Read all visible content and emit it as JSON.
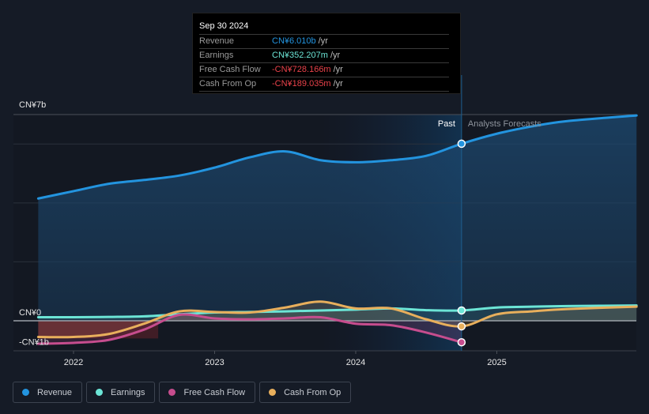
{
  "tooltip": {
    "date": "Sep 30 2024",
    "rows": [
      {
        "label": "Revenue",
        "value": "CN¥6.010b",
        "unit": "/yr",
        "color": "#2394df"
      },
      {
        "label": "Earnings",
        "value": "CN¥352.207m",
        "unit": "/yr",
        "color": "#6ce5d6"
      },
      {
        "label": "Free Cash Flow",
        "value": "-CN¥728.166m",
        "unit": "/yr",
        "color": "#e9424a"
      },
      {
        "label": "Cash From Op",
        "value": "-CN¥189.035m",
        "unit": "/yr",
        "color": "#e9424a"
      }
    ]
  },
  "legend": [
    {
      "label": "Revenue",
      "color": "#2394df"
    },
    {
      "label": "Earnings",
      "color": "#6ce5d6"
    },
    {
      "label": "Free Cash Flow",
      "color": "#c64d8e"
    },
    {
      "label": "Cash From Op",
      "color": "#e8af5c"
    }
  ],
  "chart_data": {
    "type": "line",
    "title": "",
    "xlabel": "",
    "ylabel": "",
    "y_unit": "CN¥ billions",
    "ylim": [
      -1,
      7
    ],
    "y_tick_labels": [
      {
        "value": 7,
        "label": "CN¥7b"
      },
      {
        "value": 0,
        "label": "CN¥0"
      },
      {
        "value": -1,
        "label": "-CN¥1b"
      }
    ],
    "x_ticks": [
      {
        "value": 2022.0,
        "label": "2022"
      },
      {
        "value": 2023.0,
        "label": "2023"
      },
      {
        "value": 2024.0,
        "label": "2024"
      },
      {
        "value": 2025.0,
        "label": "2025"
      }
    ],
    "xlim": [
      2021.5,
      2025.99
    ],
    "grid": true,
    "divider": {
      "x": 2024.75,
      "past_label": "Past",
      "forecast_label": "Analysts Forecasts"
    },
    "highlight_x": 2024.75,
    "series": [
      {
        "name": "Revenue",
        "color": "#2394df",
        "points": [
          [
            2021.75,
            4.15
          ],
          [
            2022.0,
            4.4
          ],
          [
            2022.25,
            4.65
          ],
          [
            2022.5,
            4.78
          ],
          [
            2022.75,
            4.93
          ],
          [
            2023.0,
            5.2
          ],
          [
            2023.25,
            5.55
          ],
          [
            2023.5,
            5.75
          ],
          [
            2023.75,
            5.45
          ],
          [
            2024.0,
            5.38
          ],
          [
            2024.25,
            5.45
          ],
          [
            2024.5,
            5.6
          ],
          [
            2024.75,
            6.01
          ],
          [
            2025.0,
            6.35
          ],
          [
            2025.25,
            6.6
          ],
          [
            2025.5,
            6.78
          ],
          [
            2025.99,
            6.97
          ]
        ]
      },
      {
        "name": "Earnings",
        "color": "#6ce5d6",
        "points": [
          [
            2021.75,
            0.12
          ],
          [
            2022.0,
            0.12
          ],
          [
            2022.25,
            0.13
          ],
          [
            2022.5,
            0.15
          ],
          [
            2022.75,
            0.22
          ],
          [
            2023.0,
            0.28
          ],
          [
            2023.25,
            0.3
          ],
          [
            2023.5,
            0.32
          ],
          [
            2023.75,
            0.35
          ],
          [
            2024.0,
            0.38
          ],
          [
            2024.25,
            0.42
          ],
          [
            2024.5,
            0.36
          ],
          [
            2024.75,
            0.35
          ],
          [
            2025.0,
            0.45
          ],
          [
            2025.25,
            0.48
          ],
          [
            2025.5,
            0.5
          ],
          [
            2025.99,
            0.52
          ]
        ]
      },
      {
        "name": "Free Cash Flow",
        "color": "#c64d8e",
        "points": [
          [
            2021.75,
            -0.78
          ],
          [
            2022.0,
            -0.75
          ],
          [
            2022.25,
            -0.65
          ],
          [
            2022.5,
            -0.3
          ],
          [
            2022.75,
            0.2
          ],
          [
            2023.0,
            0.08
          ],
          [
            2023.25,
            0.05
          ],
          [
            2023.5,
            0.08
          ],
          [
            2023.75,
            0.12
          ],
          [
            2024.0,
            -0.1
          ],
          [
            2024.25,
            -0.15
          ],
          [
            2024.5,
            -0.4
          ],
          [
            2024.75,
            -0.73
          ]
        ]
      },
      {
        "name": "Cash From Op",
        "color": "#e8af5c",
        "points": [
          [
            2021.75,
            -0.55
          ],
          [
            2022.0,
            -0.55
          ],
          [
            2022.25,
            -0.45
          ],
          [
            2022.5,
            -0.1
          ],
          [
            2022.75,
            0.32
          ],
          [
            2023.0,
            0.3
          ],
          [
            2023.25,
            0.28
          ],
          [
            2023.5,
            0.45
          ],
          [
            2023.75,
            0.65
          ],
          [
            2024.0,
            0.42
          ],
          [
            2024.25,
            0.42
          ],
          [
            2024.5,
            0.05
          ],
          [
            2024.75,
            -0.19
          ],
          [
            2025.0,
            0.22
          ],
          [
            2025.25,
            0.32
          ],
          [
            2025.5,
            0.4
          ],
          [
            2025.99,
            0.48
          ]
        ]
      }
    ]
  }
}
